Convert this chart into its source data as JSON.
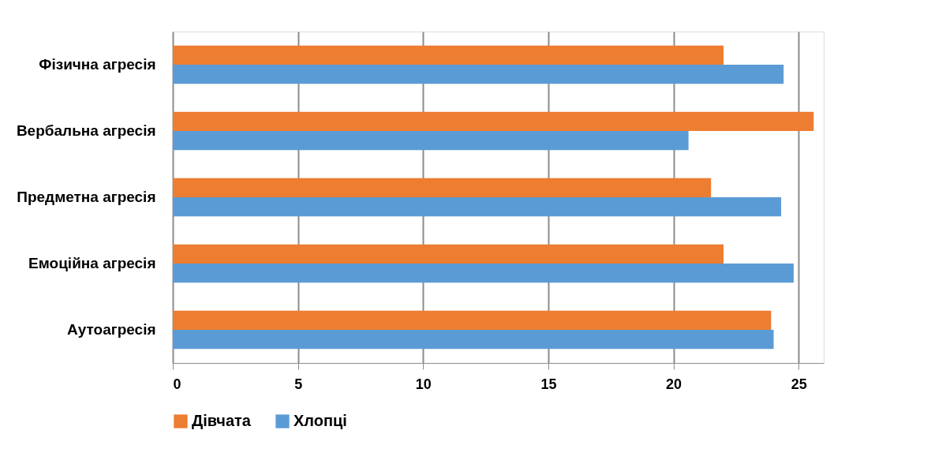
{
  "chart_data": {
    "type": "bar",
    "orientation": "horizontal",
    "categories": [
      "Фізична агресія",
      "Вербальна агресія",
      "Предметна агресія",
      "Емоційна агресія",
      "Аутоагресія"
    ],
    "series": [
      {
        "name": "Дівчата",
        "color": "#ed7d31",
        "values": [
          22.0,
          25.6,
          21.5,
          22.0,
          23.9
        ]
      },
      {
        "name": "Хлопці",
        "color": "#5b9bd5",
        "values": [
          24.4,
          20.6,
          24.3,
          24.8,
          24.0
        ]
      }
    ],
    "xlim": [
      0,
      26
    ],
    "xticks": [
      0,
      5,
      10,
      15,
      20,
      25
    ],
    "grid": "x",
    "legend": "bottom"
  }
}
